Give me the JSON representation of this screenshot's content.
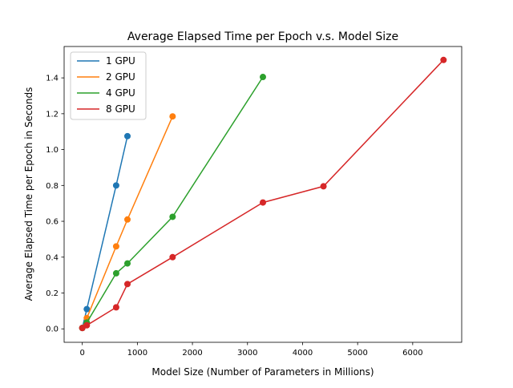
{
  "chart_data": {
    "type": "line",
    "title": "Average Elapsed Time per Epoch v.s. Model Size",
    "xlabel": "Model Size (Number of Parameters in Millions)",
    "ylabel": "Average Elapsed Time per Epoch in Seconds",
    "xlim": [
      -330,
      6890
    ],
    "ylim": [
      -0.075,
      1.575
    ],
    "x_ticks": [
      0,
      1000,
      2000,
      3000,
      4000,
      5000,
      6000
    ],
    "x_tick_labels": [
      "0",
      "1000",
      "2000",
      "3000",
      "4000",
      "5000",
      "6000"
    ],
    "y_ticks": [
      0.0,
      0.2,
      0.4,
      0.6,
      0.8,
      1.0,
      1.2,
      1.4
    ],
    "y_tick_labels": [
      "0.0",
      "0.2",
      "0.4",
      "0.6",
      "0.8",
      "1.0",
      "1.2",
      "1.4"
    ],
    "grid": false,
    "legend_position": "top-left",
    "markers": true,
    "series": [
      {
        "name": "1 GPU",
        "color": "#1f77b4",
        "x": [
          0,
          82,
          615,
          820
        ],
        "y": [
          0.005,
          0.11,
          0.8,
          1.075
        ]
      },
      {
        "name": "2 GPU",
        "color": "#ff7f0e",
        "x": [
          0,
          82,
          615,
          820,
          1640
        ],
        "y": [
          0.005,
          0.06,
          0.46,
          0.61,
          1.185
        ]
      },
      {
        "name": "4 GPU",
        "color": "#2ca02c",
        "x": [
          0,
          82,
          615,
          820,
          1640,
          3280
        ],
        "y": [
          0.005,
          0.035,
          0.31,
          0.365,
          0.625,
          1.405
        ]
      },
      {
        "name": "8 GPU",
        "color": "#d62728",
        "x": [
          0,
          82,
          615,
          820,
          1640,
          3280,
          4380,
          6560
        ],
        "y": [
          0.005,
          0.02,
          0.12,
          0.25,
          0.4,
          0.705,
          0.795,
          1.5
        ]
      }
    ]
  }
}
